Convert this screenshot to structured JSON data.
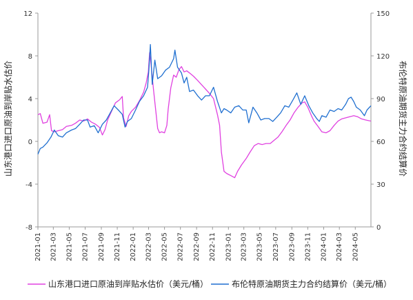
{
  "chart_data": {
    "type": "line",
    "title": "",
    "left_axis_label": "山东港口进口原油到岸贴水估价",
    "right_axis_label": "布伦特原油期货主力合约结算价",
    "left_ylim": [
      -8,
      12
    ],
    "left_ticks": [
      -8,
      -4,
      0,
      4,
      8,
      12
    ],
    "right_ylim": [
      0,
      150
    ],
    "right_ticks": [
      0,
      30,
      60,
      90,
      120,
      150
    ],
    "x_ticks": [
      "2021-01",
      "2021-03",
      "2021-05",
      "2021-07",
      "2021-09",
      "2021-11",
      "2022-01",
      "2022-03",
      "2022-05",
      "2022-07",
      "2022-09",
      "2022-11",
      "2023-01",
      "2023-03",
      "2023-05",
      "2023-07",
      "2023-09",
      "2023-11",
      "2024-01",
      "2024-03",
      "2024-05"
    ],
    "x_range": [
      "2021-01-01",
      "2024-06-30"
    ],
    "grid": false,
    "legend_position": "bottom",
    "series": [
      {
        "name": "山东港口进口原油到岸贴水估价（美元/桶）",
        "axis": "left",
        "color": "#e040e0",
        "points": [
          [
            "2021-01-01",
            2.5
          ],
          [
            "2021-01-10",
            2.6
          ],
          [
            "2021-01-20",
            1.7
          ],
          [
            "2021-02-05",
            1.8
          ],
          [
            "2021-02-15",
            2.5
          ],
          [
            "2021-02-22",
            1.0
          ],
          [
            "2021-03-05",
            0.9
          ],
          [
            "2021-03-20",
            1.0
          ],
          [
            "2021-04-05",
            1.1
          ],
          [
            "2021-04-20",
            1.4
          ],
          [
            "2021-05-10",
            1.5
          ],
          [
            "2021-05-25",
            1.7
          ],
          [
            "2021-06-10",
            2.0
          ],
          [
            "2021-06-25",
            1.9
          ],
          [
            "2021-07-10",
            2.1
          ],
          [
            "2021-07-25",
            1.8
          ],
          [
            "2021-08-10",
            1.6
          ],
          [
            "2021-08-25",
            1.3
          ],
          [
            "2021-09-05",
            0.6
          ],
          [
            "2021-09-15",
            1.1
          ],
          [
            "2021-09-25",
            2.0
          ],
          [
            "2021-10-10",
            2.8
          ],
          [
            "2021-10-25",
            3.6
          ],
          [
            "2021-11-10",
            3.9
          ],
          [
            "2021-11-20",
            4.2
          ],
          [
            "2021-11-25",
            2.2
          ],
          [
            "2021-12-05",
            1.4
          ],
          [
            "2021-12-15",
            2.4
          ],
          [
            "2021-12-25",
            2.8
          ],
          [
            "2022-01-10",
            3.2
          ],
          [
            "2022-01-25",
            3.8
          ],
          [
            "2022-02-10",
            4.6
          ],
          [
            "2022-02-20",
            5.5
          ],
          [
            "2022-02-28",
            6.5
          ],
          [
            "2022-03-05",
            8.3
          ],
          [
            "2022-03-10",
            7.3
          ],
          [
            "2022-03-20",
            4.8
          ],
          [
            "2022-03-28",
            3.0
          ],
          [
            "2022-04-05",
            1.2
          ],
          [
            "2022-04-12",
            0.8
          ],
          [
            "2022-04-20",
            0.9
          ],
          [
            "2022-05-01",
            0.8
          ],
          [
            "2022-05-10",
            1.5
          ],
          [
            "2022-05-15",
            3.0
          ],
          [
            "2022-05-25",
            5.0
          ],
          [
            "2022-06-05",
            6.2
          ],
          [
            "2022-06-15",
            6.0
          ],
          [
            "2022-06-25",
            6.7
          ],
          [
            "2022-07-05",
            7.0
          ],
          [
            "2022-07-15",
            6.5
          ],
          [
            "2022-07-25",
            6.6
          ],
          [
            "2022-08-05",
            6.4
          ],
          [
            "2022-08-20",
            6.1
          ],
          [
            "2022-09-05",
            5.7
          ],
          [
            "2022-09-20",
            5.3
          ],
          [
            "2022-10-05",
            4.9
          ],
          [
            "2022-10-20",
            4.5
          ],
          [
            "2022-11-05",
            4.0
          ],
          [
            "2022-11-20",
            2.5
          ],
          [
            "2022-11-28",
            1.5
          ],
          [
            "2022-12-05",
            -1.0
          ],
          [
            "2022-12-15",
            -2.8
          ],
          [
            "2022-12-25",
            -3.0
          ],
          [
            "2023-01-10",
            -3.2
          ],
          [
            "2023-01-25",
            -3.4
          ],
          [
            "2023-02-05",
            -2.8
          ],
          [
            "2023-02-20",
            -2.2
          ],
          [
            "2023-03-10",
            -1.6
          ],
          [
            "2023-03-25",
            -1.0
          ],
          [
            "2023-04-10",
            -0.4
          ],
          [
            "2023-04-25",
            -0.2
          ],
          [
            "2023-05-10",
            -0.3
          ],
          [
            "2023-05-25",
            -0.2
          ],
          [
            "2023-06-10",
            -0.2
          ],
          [
            "2023-06-25",
            0.1
          ],
          [
            "2023-07-10",
            0.4
          ],
          [
            "2023-07-25",
            0.9
          ],
          [
            "2023-08-10",
            1.5
          ],
          [
            "2023-08-25",
            2.0
          ],
          [
            "2023-09-10",
            2.7
          ],
          [
            "2023-09-25",
            3.2
          ],
          [
            "2023-10-10",
            3.6
          ],
          [
            "2023-10-20",
            3.7
          ],
          [
            "2023-11-01",
            3.2
          ],
          [
            "2023-11-15",
            2.4
          ],
          [
            "2023-11-25",
            1.9
          ],
          [
            "2023-12-10",
            1.4
          ],
          [
            "2023-12-25",
            0.9
          ],
          [
            "2024-01-10",
            0.8
          ],
          [
            "2024-01-25",
            1.0
          ],
          [
            "2024-02-10",
            1.5
          ],
          [
            "2024-02-25",
            1.9
          ],
          [
            "2024-03-10",
            2.1
          ],
          [
            "2024-03-25",
            2.2
          ],
          [
            "2024-04-10",
            2.3
          ],
          [
            "2024-04-25",
            2.4
          ],
          [
            "2024-05-10",
            2.3
          ],
          [
            "2024-05-25",
            2.1
          ],
          [
            "2024-06-10",
            2.0
          ],
          [
            "2024-06-30",
            1.9
          ]
        ]
      },
      {
        "name": "布伦特原油期货主力合约结算价（美元/桶）",
        "axis": "right",
        "color": "#1f6fd0",
        "points": [
          [
            "2021-01-01",
            51
          ],
          [
            "2021-01-10",
            55
          ],
          [
            "2021-01-20",
            56
          ],
          [
            "2021-02-05",
            59
          ],
          [
            "2021-02-20",
            63
          ],
          [
            "2021-03-05",
            68
          ],
          [
            "2021-03-20",
            64
          ],
          [
            "2021-04-05",
            63
          ],
          [
            "2021-04-20",
            66
          ],
          [
            "2021-05-10",
            68
          ],
          [
            "2021-05-25",
            69
          ],
          [
            "2021-06-10",
            72
          ],
          [
            "2021-06-25",
            75
          ],
          [
            "2021-07-10",
            75
          ],
          [
            "2021-07-20",
            70
          ],
          [
            "2021-08-05",
            71
          ],
          [
            "2021-08-20",
            66
          ],
          [
            "2021-09-05",
            72
          ],
          [
            "2021-09-20",
            75
          ],
          [
            "2021-10-05",
            80
          ],
          [
            "2021-10-20",
            85
          ],
          [
            "2021-11-05",
            82
          ],
          [
            "2021-11-20",
            79
          ],
          [
            "2021-12-01",
            70
          ],
          [
            "2021-12-10",
            74
          ],
          [
            "2021-12-25",
            76
          ],
          [
            "2022-01-10",
            82
          ],
          [
            "2022-01-25",
            88
          ],
          [
            "2022-02-10",
            92
          ],
          [
            "2022-02-25",
            98
          ],
          [
            "2022-03-02",
            110
          ],
          [
            "2022-03-08",
            128
          ],
          [
            "2022-03-15",
            100
          ],
          [
            "2022-03-25",
            117
          ],
          [
            "2022-04-05",
            104
          ],
          [
            "2022-04-20",
            106
          ],
          [
            "2022-05-05",
            110
          ],
          [
            "2022-05-20",
            112
          ],
          [
            "2022-06-05",
            118
          ],
          [
            "2022-06-10",
            124
          ],
          [
            "2022-06-20",
            112
          ],
          [
            "2022-07-05",
            108
          ],
          [
            "2022-07-15",
            101
          ],
          [
            "2022-07-25",
            105
          ],
          [
            "2022-08-05",
            95
          ],
          [
            "2022-08-20",
            96
          ],
          [
            "2022-09-05",
            92
          ],
          [
            "2022-09-20",
            89
          ],
          [
            "2022-10-05",
            92
          ],
          [
            "2022-10-20",
            92
          ],
          [
            "2022-11-05",
            98
          ],
          [
            "2022-11-20",
            88
          ],
          [
            "2022-12-05",
            80
          ],
          [
            "2022-12-15",
            83
          ],
          [
            "2022-12-25",
            82
          ],
          [
            "2023-01-10",
            80
          ],
          [
            "2023-01-25",
            84
          ],
          [
            "2023-02-10",
            85
          ],
          [
            "2023-02-25",
            82
          ],
          [
            "2023-03-10",
            82
          ],
          [
            "2023-03-20",
            73
          ],
          [
            "2023-04-05",
            84
          ],
          [
            "2023-04-20",
            80
          ],
          [
            "2023-05-05",
            75
          ],
          [
            "2023-05-20",
            76
          ],
          [
            "2023-06-05",
            76
          ],
          [
            "2023-06-20",
            74
          ],
          [
            "2023-07-05",
            77
          ],
          [
            "2023-07-20",
            80
          ],
          [
            "2023-08-05",
            85
          ],
          [
            "2023-08-20",
            84
          ],
          [
            "2023-09-05",
            89
          ],
          [
            "2023-09-20",
            94
          ],
          [
            "2023-10-05",
            86
          ],
          [
            "2023-10-20",
            92
          ],
          [
            "2023-11-05",
            85
          ],
          [
            "2023-11-20",
            80
          ],
          [
            "2023-12-05",
            76
          ],
          [
            "2023-12-15",
            74
          ],
          [
            "2023-12-25",
            78
          ],
          [
            "2024-01-10",
            77
          ],
          [
            "2024-01-25",
            82
          ],
          [
            "2024-02-10",
            81
          ],
          [
            "2024-02-25",
            83
          ],
          [
            "2024-03-10",
            82
          ],
          [
            "2024-03-25",
            86
          ],
          [
            "2024-04-05",
            90
          ],
          [
            "2024-04-15",
            91
          ],
          [
            "2024-04-25",
            88
          ],
          [
            "2024-05-05",
            84
          ],
          [
            "2024-05-20",
            82
          ],
          [
            "2024-06-05",
            78
          ],
          [
            "2024-06-15",
            82
          ],
          [
            "2024-06-30",
            85
          ]
        ]
      }
    ]
  }
}
